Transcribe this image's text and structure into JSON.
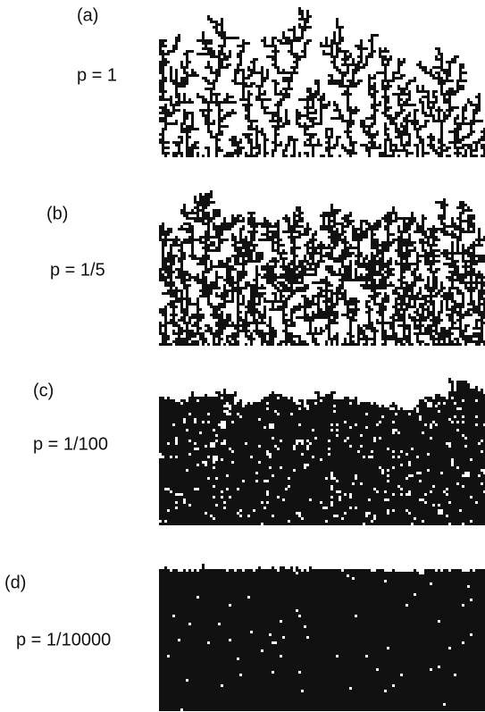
{
  "panels": [
    {
      "label": "(a)",
      "p": "p = 1"
    },
    {
      "label": "(b)",
      "p": "p = 1/5"
    },
    {
      "label": "(c)",
      "p": "p = 1/100"
    },
    {
      "label": "(d)",
      "p": "p = 1/10000"
    }
  ]
}
